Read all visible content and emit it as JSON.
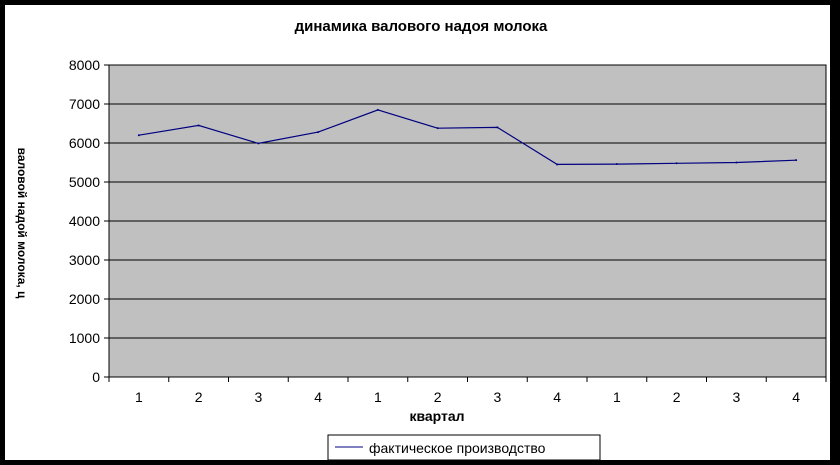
{
  "chart_data": {
    "type": "line",
    "title": "динамика валового надоя молока",
    "xlabel": "квартал",
    "ylabel": "валовой надой молока, ц",
    "categories": [
      "1",
      "2",
      "3",
      "4",
      "1",
      "2",
      "3",
      "4",
      "1",
      "2",
      "3",
      "4"
    ],
    "series": [
      {
        "name": "фактическое производство",
        "values": [
          6200,
          6450,
          5990,
          6280,
          6850,
          6380,
          6400,
          5450,
          5460,
          5480,
          5500,
          5560
        ]
      }
    ],
    "ylim": [
      0,
      8000
    ],
    "yticks": [
      0,
      1000,
      2000,
      3000,
      4000,
      5000,
      6000,
      7000,
      8000
    ],
    "grid": true,
    "legend_position": "bottom",
    "colors": {
      "background": "#000000",
      "plot_area": "#c0c0c0",
      "line": "#000080",
      "grid": "#000000"
    }
  }
}
